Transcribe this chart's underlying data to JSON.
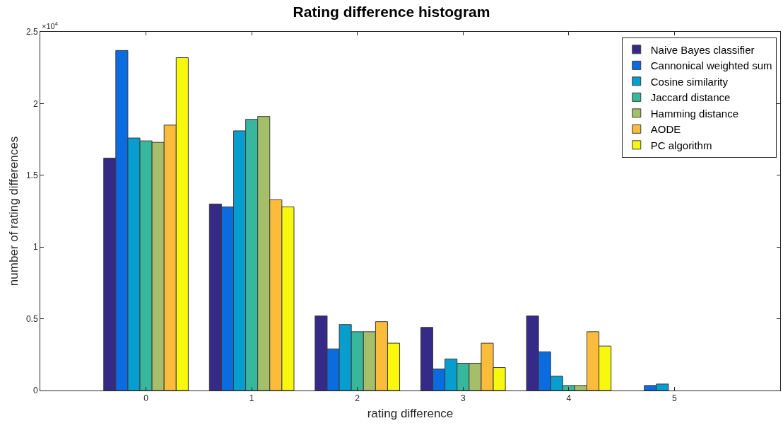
{
  "chart_data": {
    "type": "bar",
    "title": "Rating difference histogram",
    "xlabel": "rating difference",
    "ylabel": "number of rating differences",
    "x": [
      0,
      1,
      2,
      3,
      4,
      5
    ],
    "series": [
      {
        "name": "Naive Bayes classifier",
        "color": "#352a87",
        "values": [
          1.62,
          1.3,
          0.52,
          0.44,
          0.52,
          0
        ]
      },
      {
        "name": "Cannonical weighted sum",
        "color": "#0b6ce0",
        "values": [
          2.37,
          1.28,
          0.29,
          0.15,
          0.27,
          0.035
        ]
      },
      {
        "name": "Cosine similarity",
        "color": "#089dcf",
        "values": [
          1.76,
          1.81,
          0.46,
          0.22,
          0.1,
          0.045
        ]
      },
      {
        "name": "Jaccard distance",
        "color": "#37b89d",
        "values": [
          1.74,
          1.89,
          0.41,
          0.19,
          0.035,
          0
        ]
      },
      {
        "name": "Hamming distance",
        "color": "#a5be6a",
        "values": [
          1.73,
          1.91,
          0.41,
          0.19,
          0.035,
          0
        ]
      },
      {
        "name": "AODE",
        "color": "#fbbc3c",
        "values": [
          1.85,
          1.33,
          0.48,
          0.33,
          0.41,
          0
        ]
      },
      {
        "name": "PC algorithm",
        "color": "#f8f80f",
        "values": [
          2.32,
          1.28,
          0.33,
          0.16,
          0.31,
          0
        ]
      }
    ],
    "xlim": [
      -1,
      6
    ],
    "xticks": [
      0,
      1,
      2,
      3,
      4,
      5
    ],
    "ylim": [
      0,
      2.5
    ],
    "yticks": [
      0,
      0.5,
      1,
      1.5,
      2,
      2.5
    ],
    "annotations": [
      "×10$^{4}$"
    ],
    "legend": "top right"
  }
}
